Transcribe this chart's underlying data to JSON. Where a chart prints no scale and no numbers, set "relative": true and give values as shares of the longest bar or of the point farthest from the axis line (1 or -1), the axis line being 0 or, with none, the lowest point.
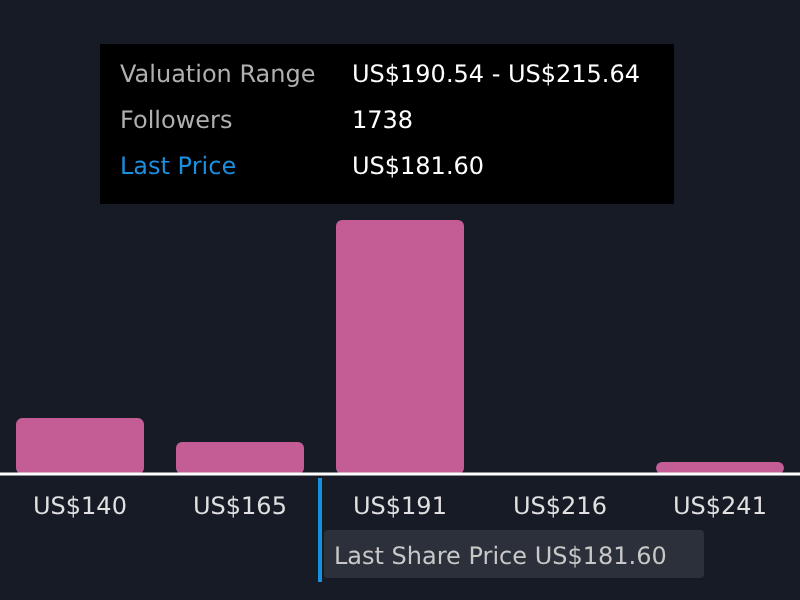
{
  "chart_data": {
    "type": "bar",
    "relative": true,
    "categories": [
      "US$140",
      "US$165",
      "US$191",
      "US$216",
      "US$241"
    ],
    "values": [
      0.22,
      0.126,
      1,
      0,
      0.047
    ],
    "color": "#c45c95",
    "annotations": [
      "Valuation Range",
      "US$190.54 - US$215.64",
      "Followers",
      "1738",
      "Last Price",
      "US$181.60",
      "Last Share Price US$181.60"
    ],
    "grid": false,
    "legend": false
  }
}
